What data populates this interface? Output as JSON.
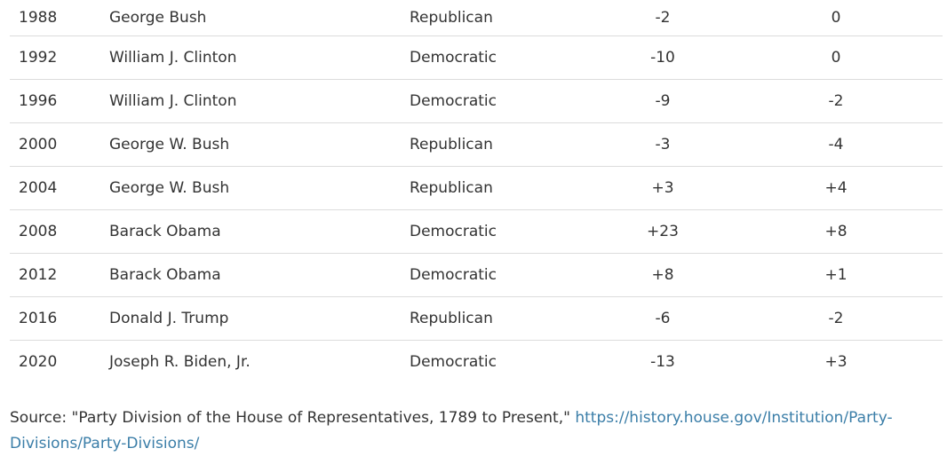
{
  "table": {
    "rows": [
      {
        "year": "1988",
        "president": "George Bush",
        "party": "Republican",
        "house": "-2",
        "senate": "0"
      },
      {
        "year": "1992",
        "president": "William J. Clinton",
        "party": "Democratic",
        "house": "-10",
        "senate": "0"
      },
      {
        "year": "1996",
        "president": "William J. Clinton",
        "party": "Democratic",
        "house": "-9",
        "senate": "-2"
      },
      {
        "year": "2000",
        "president": "George W. Bush",
        "party": "Republican",
        "house": "-3",
        "senate": "-4"
      },
      {
        "year": "2004",
        "president": "George W. Bush",
        "party": "Republican",
        "house": "+3",
        "senate": "+4"
      },
      {
        "year": "2008",
        "president": "Barack Obama",
        "party": "Democratic",
        "house": "+23",
        "senate": "+8"
      },
      {
        "year": "2012",
        "president": "Barack Obama",
        "party": "Democratic",
        "house": "+8",
        "senate": "+1"
      },
      {
        "year": "2016",
        "president": "Donald J. Trump",
        "party": "Republican",
        "house": "-6",
        "senate": "-2"
      },
      {
        "year": "2020",
        "president": "Joseph R. Biden, Jr.",
        "party": "Democratic",
        "house": "-13",
        "senate": "+3"
      }
    ]
  },
  "source": {
    "prefix": "Source:  \"Party Division of the House of Representatives, 1789 to Present,\" ",
    "link_text": "https://history.house.gov/Institution/Party-Divisions/Party-Divisions/",
    "link_color": "#3b7ea8"
  }
}
